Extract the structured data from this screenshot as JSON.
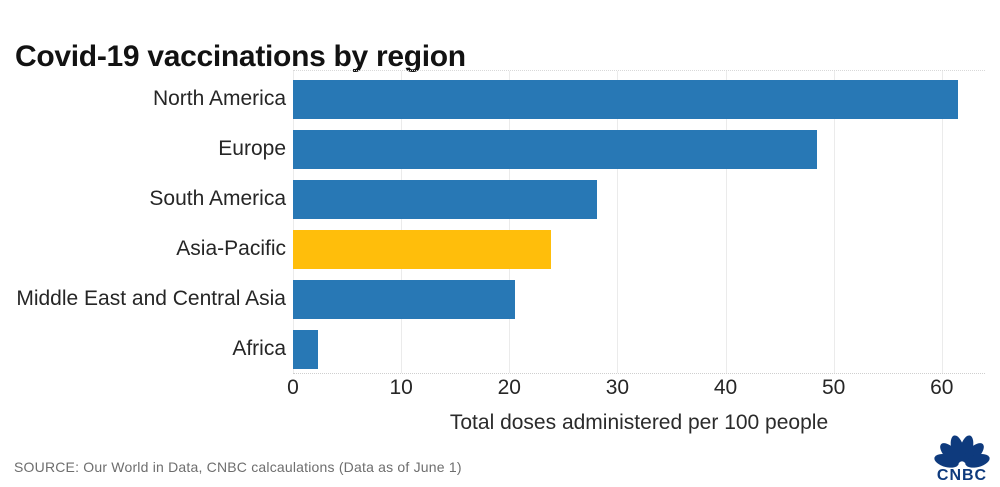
{
  "header": {
    "title": "Covid-19 vaccinations by region"
  },
  "chart_data": {
    "type": "bar",
    "orientation": "horizontal",
    "title": "Covid-19 vaccinations by region",
    "categories": [
      "North America",
      "Europe",
      "South America",
      "Asia-Pacific",
      "Middle East and Central Asia",
      "Africa"
    ],
    "values": [
      61.5,
      48.5,
      28.1,
      23.9,
      20.5,
      2.3
    ],
    "highlight_index": 3,
    "bar_color": "#2878B5",
    "highlight_color": "#FFBE0B",
    "grid_color": "#ebebeb",
    "xlabel": "Total doses administered per 100 people",
    "ylabel": "",
    "xticks": [
      0,
      10,
      20,
      30,
      40,
      50,
      60
    ],
    "xlim": [
      0,
      64
    ],
    "grid": "vertical-only",
    "legend": "none"
  },
  "footer": {
    "source": "SOURCE: Our World in Data, CNBC calcaulations (Data as of June 1)",
    "logo_text": "CNBC",
    "logo_color": "#0e3a7d"
  }
}
